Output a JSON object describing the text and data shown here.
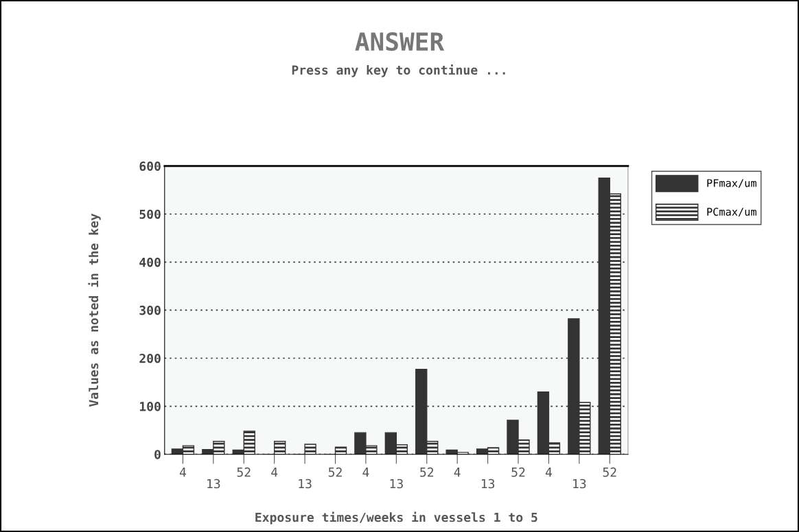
{
  "chart_data": {
    "type": "bar",
    "title": "ANSWER",
    "subtitle": "Press any key to continue ...",
    "xlabel": "Exposure times/weeks in vessels 1 to 5",
    "ylabel": "Values as noted in the key",
    "categories": [
      "4",
      "13",
      "52",
      "4",
      "13",
      "52",
      "4",
      "13",
      "52",
      "4",
      "13",
      "52",
      "4",
      "13",
      "52"
    ],
    "series": [
      {
        "name": "PFmax/um",
        "color": "#333333",
        "values": [
          11,
          10,
          9,
          0,
          0,
          0,
          45,
          45,
          177,
          9,
          11,
          71,
          130,
          282,
          575
        ]
      },
      {
        "name": "PCmax/um",
        "color": "#333333",
        "values": [
          18,
          27,
          48,
          27,
          21,
          15,
          18,
          20,
          27,
          4,
          14,
          30,
          24,
          108,
          542
        ]
      }
    ],
    "ylim": [
      0,
      600
    ],
    "yticks": [
      0,
      100,
      200,
      300,
      400,
      500,
      600
    ],
    "grid": "y",
    "legend": "top right"
  }
}
